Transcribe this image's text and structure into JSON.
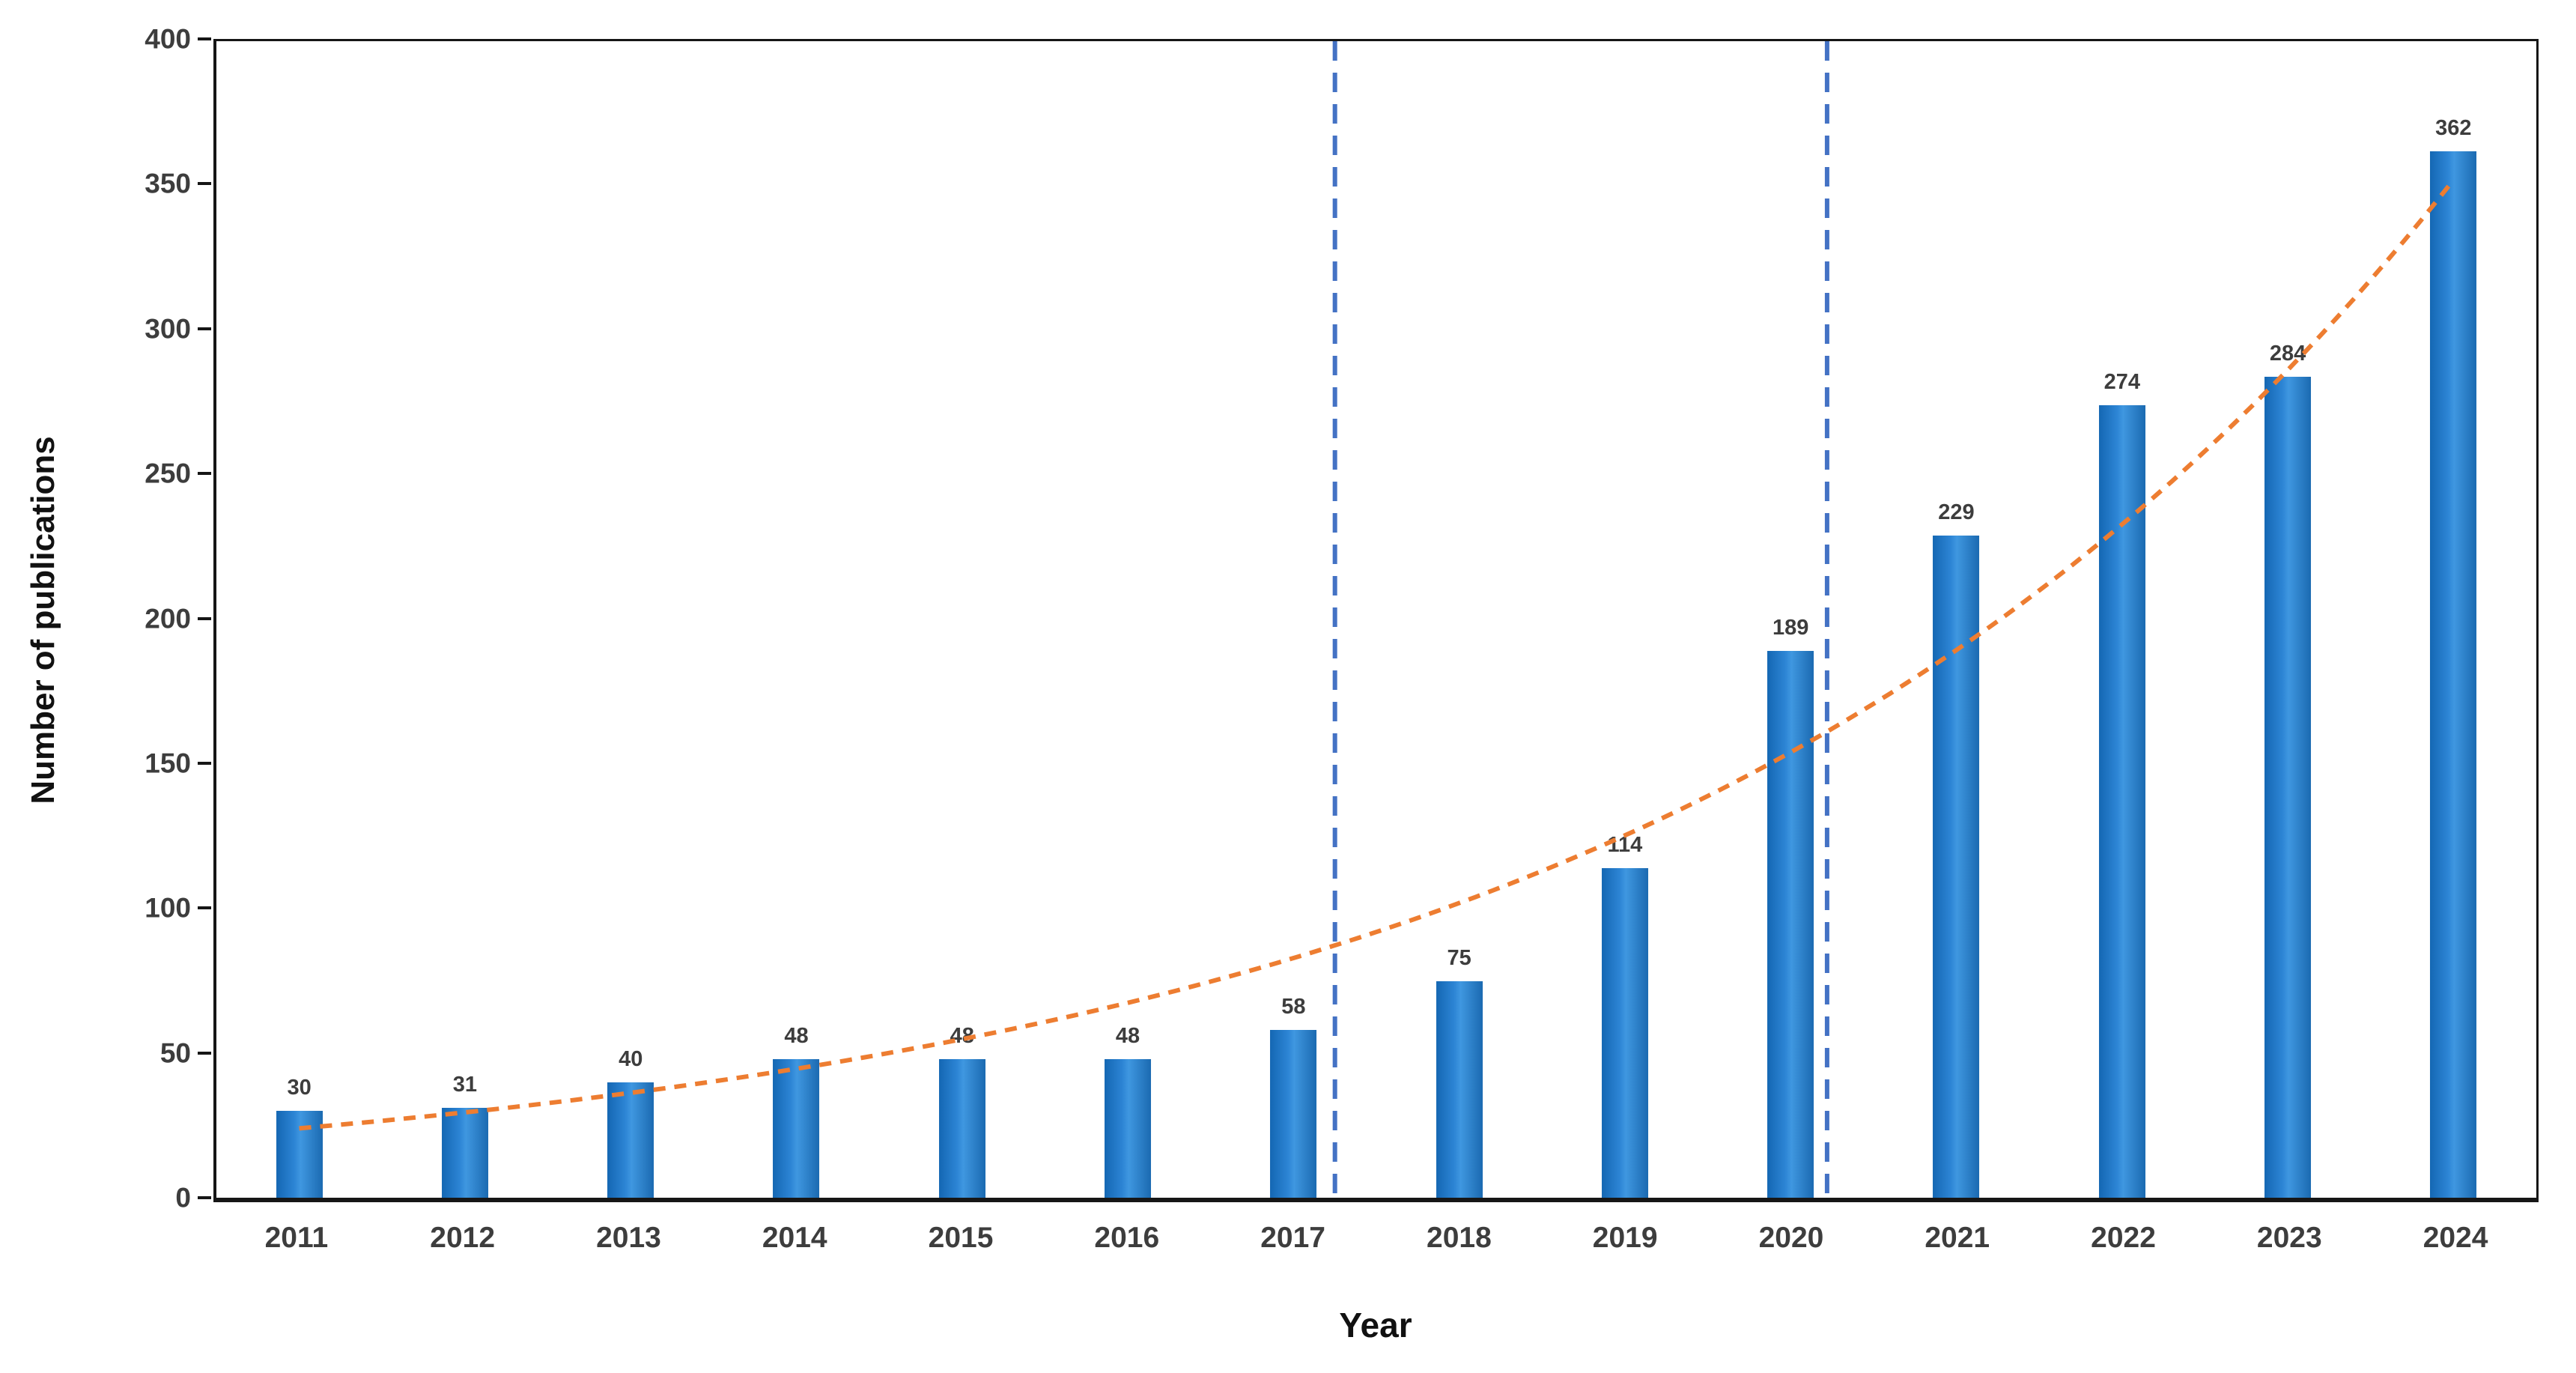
{
  "chart_data": {
    "type": "bar",
    "title": "",
    "xlabel": "Year",
    "ylabel": "Number of publications",
    "categories": [
      "2011",
      "2012",
      "2013",
      "2014",
      "2015",
      "2016",
      "2017",
      "2018",
      "2019",
      "2020",
      "2021",
      "2022",
      "2023",
      "2024"
    ],
    "values": [
      30,
      31,
      40,
      48,
      48,
      48,
      58,
      75,
      114,
      189,
      229,
      274,
      284,
      362
    ],
    "ylim": [
      0,
      400
    ],
    "ytick_step": 50,
    "ytick_labels": [
      "0",
      "50",
      "100",
      "150",
      "200",
      "250",
      "300",
      "350",
      "400"
    ],
    "grid": false,
    "legend": "none",
    "bar_color": "#1F6FB8",
    "value_label_color": "#3D3D3D",
    "trendline": {
      "type": "exponential",
      "style": "dashed",
      "color": "#ED7D31",
      "start_value": 24,
      "end_value": 352
    },
    "reference_lines": [
      {
        "after_category": "2017",
        "offset": 0.75,
        "style": "dashed",
        "color": "#4472C4"
      },
      {
        "after_category": "2020",
        "offset": 0.72,
        "style": "dashed",
        "color": "#4472C4"
      }
    ]
  }
}
